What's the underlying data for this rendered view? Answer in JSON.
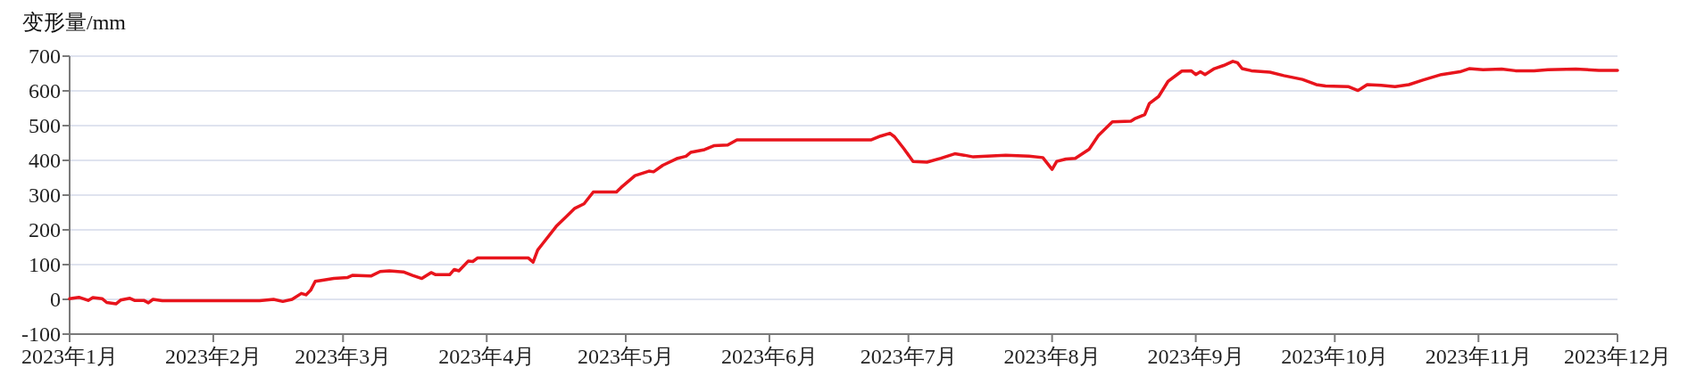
{
  "chart_data": {
    "type": "line",
    "ylabel": "变形量/mm",
    "x": [
      "2023-01-01",
      "2023-01-03",
      "2023-01-05",
      "2023-01-06",
      "2023-01-08",
      "2023-01-09",
      "2023-01-11",
      "2023-01-12",
      "2023-01-14",
      "2023-01-15",
      "2023-01-17",
      "2023-01-18",
      "2023-01-19",
      "2023-01-21",
      "2023-02-11",
      "2023-02-14",
      "2023-02-16",
      "2023-02-18",
      "2023-02-20",
      "2023-02-21",
      "2023-02-22",
      "2023-02-23",
      "2023-02-24",
      "2023-02-27",
      "2023-03-02",
      "2023-03-03",
      "2023-03-07",
      "2023-03-09",
      "2023-03-11",
      "2023-03-14",
      "2023-03-16",
      "2023-03-18",
      "2023-03-20",
      "2023-03-21",
      "2023-03-24",
      "2023-03-25",
      "2023-03-26",
      "2023-03-28",
      "2023-03-29",
      "2023-03-30",
      "2023-04-10",
      "2023-04-11",
      "2023-04-12",
      "2023-04-13",
      "2023-04-16",
      "2023-04-18",
      "2023-04-20",
      "2023-04-22",
      "2023-04-24",
      "2023-04-29",
      "2023-04-30",
      "2023-05-03",
      "2023-05-06",
      "2023-05-07",
      "2023-05-09",
      "2023-05-12",
      "2023-05-14",
      "2023-05-15",
      "2023-05-18",
      "2023-05-20",
      "2023-05-23",
      "2023-05-25",
      "2023-06-23",
      "2023-06-25",
      "2023-06-27",
      "2023-06-28",
      "2023-06-30",
      "2023-07-02",
      "2023-07-05",
      "2023-07-08",
      "2023-07-11",
      "2023-07-13",
      "2023-07-15",
      "2023-07-22",
      "2023-07-27",
      "2023-07-30",
      "2023-08-01",
      "2023-08-02",
      "2023-08-04",
      "2023-08-06",
      "2023-08-09",
      "2023-08-11",
      "2023-08-14",
      "2023-08-18",
      "2023-08-19",
      "2023-08-21",
      "2023-08-22",
      "2023-08-24",
      "2023-08-26",
      "2023-08-29",
      "2023-08-31",
      "2023-09-01",
      "2023-09-02",
      "2023-09-03",
      "2023-09-05",
      "2023-09-07",
      "2023-09-09",
      "2023-09-10",
      "2023-09-11",
      "2023-09-13",
      "2023-09-17",
      "2023-09-20",
      "2023-09-24",
      "2023-09-27",
      "2023-09-29",
      "2023-10-04",
      "2023-10-06",
      "2023-10-08",
      "2023-10-11",
      "2023-10-14",
      "2023-10-17",
      "2023-10-20",
      "2023-10-24",
      "2023-10-28",
      "2023-10-30",
      "2023-11-02",
      "2023-11-06",
      "2023-11-09",
      "2023-11-13",
      "2023-11-16",
      "2023-11-22",
      "2023-11-27",
      "2023-12-01"
    ],
    "series": [
      {
        "color": "#e8141c",
        "values": [
          2,
          6,
          -3,
          5,
          2,
          -9,
          -13,
          -2,
          3,
          -3,
          -3,
          -10,
          0,
          -4,
          -4,
          0,
          -6,
          0,
          17,
          13,
          26,
          52,
          54,
          60,
          63,
          69,
          67,
          80,
          82,
          79,
          69,
          60,
          77,
          71,
          71,
          86,
          82,
          110,
          109,
          119,
          119,
          107,
          142,
          159,
          210,
          236,
          262,
          275,
          309,
          309,
          322,
          356,
          369,
          367,
          386,
          405,
          412,
          423,
          431,
          442,
          444,
          459,
          459,
          470,
          478,
          468,
          434,
          397,
          395,
          406,
          419,
          415,
          410,
          415,
          412,
          408,
          374,
          397,
          404,
          406,
          432,
          472,
          511,
          513,
          521,
          532,
          564,
          584,
          627,
          657,
          658,
          647,
          655,
          647,
          664,
          673,
          685,
          681,
          664,
          658,
          654,
          644,
          633,
          618,
          614,
          612,
          601,
          618,
          616,
          612,
          618,
          631,
          647,
          655,
          664,
          661,
          663,
          658,
          658,
          661,
          663,
          659,
          659
        ]
      }
    ],
    "xlim": [
      "2023-01-01",
      "2023-12-01"
    ],
    "xticks": [
      {
        "value": "2023-01",
        "label": "2023年1月"
      },
      {
        "value": "2023-02",
        "label": "2023年2月"
      },
      {
        "value": "2023-03",
        "label": "2023年3月"
      },
      {
        "value": "2023-04",
        "label": "2023年4月"
      },
      {
        "value": "2023-05",
        "label": "2023年5月"
      },
      {
        "value": "2023-06",
        "label": "2023年6月"
      },
      {
        "value": "2023-07",
        "label": "2023年7月"
      },
      {
        "value": "2023-08",
        "label": "2023年8月"
      },
      {
        "value": "2023-09",
        "label": "2023年9月"
      },
      {
        "value": "2023-10",
        "label": "2023年10月"
      },
      {
        "value": "2023-11",
        "label": "2023年11月"
      },
      {
        "value": "2023-12",
        "label": "2023年12月"
      }
    ],
    "ylim": [
      -100,
      700
    ],
    "yticks": [
      -100,
      0,
      100,
      200,
      300,
      400,
      500,
      600,
      700
    ],
    "grid": "y"
  }
}
